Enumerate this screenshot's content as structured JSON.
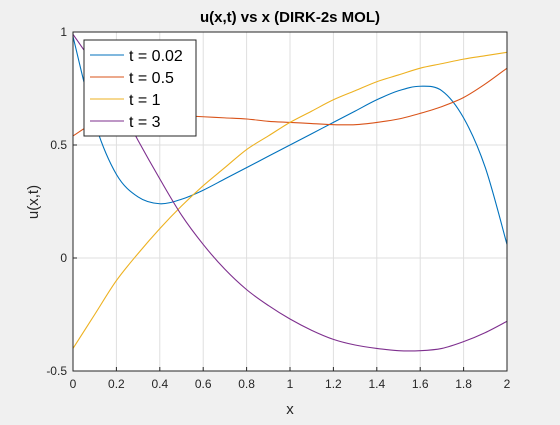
{
  "chart_data": {
    "type": "line",
    "title": "u(x,t) vs x (DIRK-2s MOL)",
    "xlabel": "x",
    "ylabel": "u(x,t)",
    "xlim": [
      0,
      2
    ],
    "ylim": [
      -0.5,
      1
    ],
    "xticks": [
      "0",
      "0.2",
      "0.4",
      "0.6",
      "0.8",
      "1",
      "1.2",
      "1.4",
      "1.6",
      "1.8",
      "2"
    ],
    "yticks": [
      "-0.5",
      "0",
      "0.5",
      "1"
    ],
    "grid": true,
    "legend_position": "top-left",
    "x": [
      0,
      0.1,
      0.2,
      0.3,
      0.4,
      0.5,
      0.6,
      0.7,
      0.8,
      0.9,
      1.0,
      1.1,
      1.2,
      1.3,
      1.4,
      1.5,
      1.6,
      1.7,
      1.8,
      1.9,
      2.0
    ],
    "series": [
      {
        "name": "t = 0.02",
        "color": "#0072BD",
        "values": [
          0.98,
          0.6,
          0.37,
          0.27,
          0.24,
          0.26,
          0.3,
          0.35,
          0.4,
          0.45,
          0.5,
          0.55,
          0.6,
          0.65,
          0.7,
          0.74,
          0.76,
          0.74,
          0.62,
          0.4,
          0.06
        ]
      },
      {
        "name": "t = 0.5",
        "color": "#D95319",
        "values": [
          0.54,
          0.6,
          0.63,
          0.64,
          0.635,
          0.63,
          0.625,
          0.62,
          0.615,
          0.605,
          0.6,
          0.595,
          0.59,
          0.59,
          0.6,
          0.615,
          0.64,
          0.67,
          0.71,
          0.77,
          0.84
        ]
      },
      {
        "name": "t = 1",
        "color": "#EDB120",
        "values": [
          -0.4,
          -0.25,
          -0.1,
          0.02,
          0.13,
          0.23,
          0.32,
          0.4,
          0.48,
          0.54,
          0.6,
          0.65,
          0.7,
          0.74,
          0.78,
          0.81,
          0.84,
          0.86,
          0.88,
          0.895,
          0.91
        ]
      },
      {
        "name": "t = 3",
        "color": "#7E2F8E",
        "values": [
          0.99,
          0.85,
          0.7,
          0.52,
          0.35,
          0.19,
          0.06,
          -0.05,
          -0.14,
          -0.21,
          -0.27,
          -0.32,
          -0.36,
          -0.385,
          -0.4,
          -0.41,
          -0.41,
          -0.4,
          -0.37,
          -0.33,
          -0.28
        ]
      }
    ]
  }
}
